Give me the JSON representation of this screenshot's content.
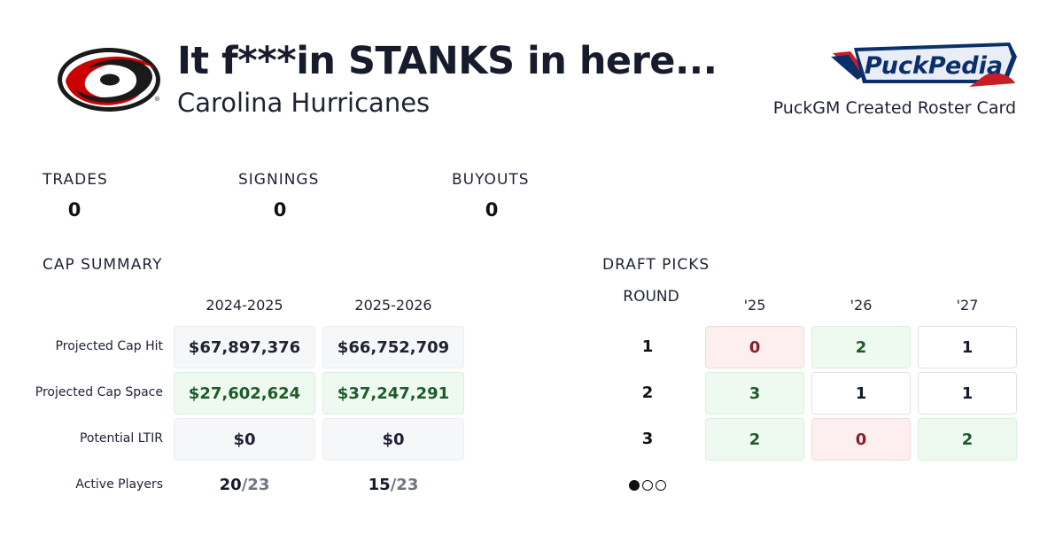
{
  "header": {
    "title": "It f***in STANKS in here...",
    "team": "Carolina Hurricanes",
    "team_logo_icon": "hurricanes-logo",
    "brand_logo_text": "PuckPedia",
    "brand_caption": "PuckGM Created Roster Card"
  },
  "stats": [
    {
      "label": "TRADES",
      "value": "0"
    },
    {
      "label": "SIGNINGS",
      "value": "0"
    },
    {
      "label": "BUYOUTS",
      "value": "0"
    }
  ],
  "cap_summary": {
    "title": "CAP SUMMARY",
    "seasons": [
      "2024-2025",
      "2025-2026"
    ],
    "rows": {
      "cap_hit": {
        "label": "Projected Cap Hit",
        "values": [
          "$67,897,376",
          "$66,752,709"
        ]
      },
      "cap_space": {
        "label": "Projected Cap Space",
        "values": [
          "$27,602,624",
          "$37,247,291"
        ]
      },
      "ltir": {
        "label": "Potential LTIR",
        "values": [
          "$0",
          "$0"
        ]
      },
      "active": {
        "label": "Active Players",
        "current": [
          "20",
          "15"
        ],
        "max": [
          "/23",
          "/23"
        ]
      }
    }
  },
  "draft_picks": {
    "title": "DRAFT PICKS",
    "round_label": "ROUND",
    "years": [
      "'25",
      "'26",
      "'27"
    ],
    "rows": [
      {
        "round": "1",
        "picks": [
          "0",
          "2",
          "1"
        ]
      },
      {
        "round": "2",
        "picks": [
          "3",
          "1",
          "1"
        ]
      },
      {
        "round": "3",
        "picks": [
          "2",
          "0",
          "2"
        ]
      }
    ]
  },
  "pagination": {
    "pages": 3,
    "active": 1
  },
  "colors": {
    "hurricanes_red": "#cc0000",
    "positive_bg": "#eefaef",
    "negative_bg": "#fdeff0",
    "brand_navy": "#0b2f6b"
  }
}
